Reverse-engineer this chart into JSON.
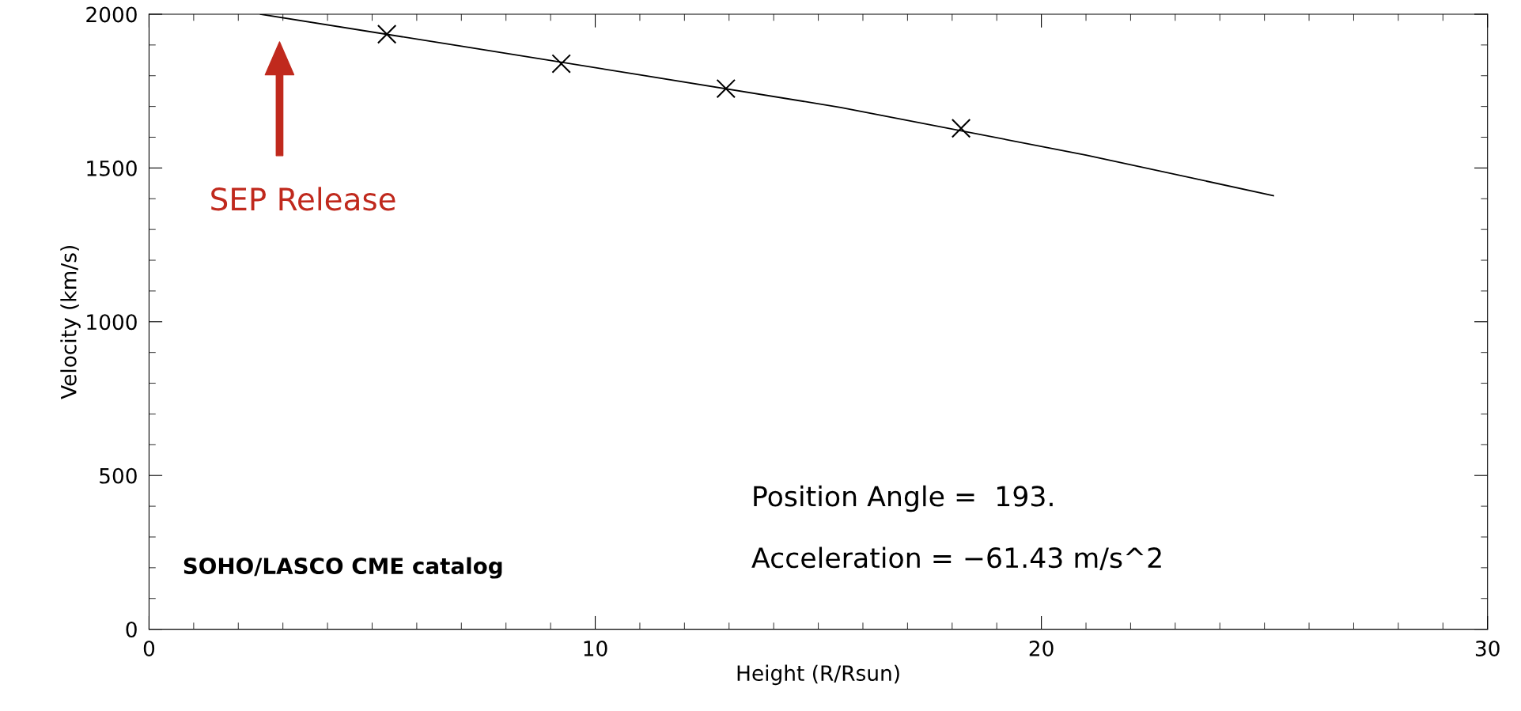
{
  "chart_data": {
    "type": "line",
    "xlabel": "Height (R/Rsun)",
    "ylabel": "Velocity (km/s)",
    "xlim": [
      0,
      30
    ],
    "ylim": [
      0,
      2000
    ],
    "xticks": [
      0,
      10,
      20,
      30
    ],
    "yticks": [
      0,
      500,
      1000,
      1500,
      2000
    ],
    "grid": false,
    "legend": false,
    "series": [
      {
        "color": "#000000",
        "marker": "none",
        "x": [
          2.5,
          7,
          11,
          15.5,
          21,
          25.2
        ],
        "values": [
          2000,
          1896,
          1803,
          1697,
          1542,
          1410
        ]
      },
      {
        "type": "scatter",
        "color": "#000000",
        "marker": "cross",
        "x": [
          5.33,
          9.24,
          12.93,
          18.2
        ],
        "values": [
          1935,
          1839,
          1758,
          1629
        ]
      }
    ],
    "annotations": [
      "SEP Release",
      "Position Angle =  193.",
      "Acceleration = −61.43 m/s^2",
      "SOHO/LASCO CME catalog"
    ]
  }
}
